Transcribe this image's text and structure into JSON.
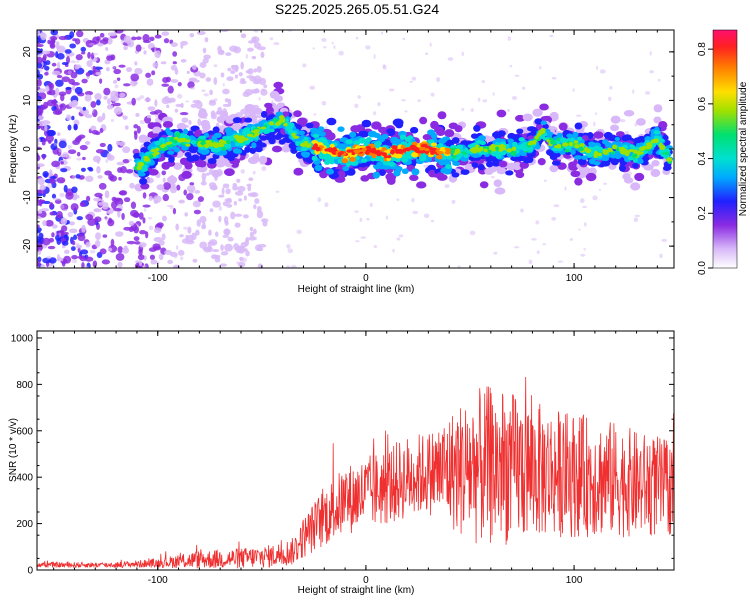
{
  "title": "S225.2025.265.05.51.G24",
  "colors": {
    "snr_line": "#f03030",
    "axis": "#000000",
    "colormap": [
      "#ffffff",
      "#d8b8f8",
      "#8a2be2",
      "#2020ff",
      "#00aaff",
      "#00e0d0",
      "#00e070",
      "#a0e000",
      "#ffe000",
      "#ff8000",
      "#ff2020",
      "#ff1070"
    ]
  },
  "chart_data": [
    {
      "type": "heatmap",
      "name": "spectrogram",
      "xlabel": "Height of straight line (km)",
      "ylabel": "Frequency (Hz)",
      "xlim": [
        -158,
        148
      ],
      "ylim": [
        -24.5,
        24.5
      ],
      "xticks": [
        -100,
        0,
        100
      ],
      "yticks": [
        -20,
        -10,
        0,
        10,
        20
      ],
      "grid": false,
      "colorbar": {
        "label": "Normalized spectral amplitude",
        "range": [
          0,
          0.87
        ],
        "ticks": [
          0.0,
          0.2,
          0.4,
          0.6,
          0.8
        ]
      },
      "ridge": {
        "x": [
          -110,
          -100,
          -90,
          -80,
          -70,
          -60,
          -50,
          -40,
          -35,
          -30,
          -20,
          -10,
          0,
          10,
          20,
          30,
          40,
          50,
          60,
          70,
          80,
          85,
          90,
          100,
          110,
          120,
          130,
          140,
          146
        ],
        "y": [
          -4,
          0,
          2,
          1,
          1,
          2,
          4,
          6,
          3,
          1,
          0,
          -1,
          0,
          -1,
          0,
          0,
          -1,
          0,
          0,
          0,
          1,
          4,
          1,
          1,
          -1,
          0,
          -1,
          2,
          -2
        ]
      }
    },
    {
      "type": "line",
      "name": "snr",
      "xlabel": "Height of straight line (km)",
      "ylabel": "SNR (10 * v/v)",
      "xlim": [
        -158,
        148
      ],
      "ylim": [
        0,
        1030
      ],
      "xticks": [
        -100,
        0,
        100
      ],
      "yticks": [
        0,
        200,
        400,
        600,
        800,
        1000
      ],
      "grid": false,
      "envelope": {
        "x": [
          -158,
          -120,
          -100,
          -80,
          -60,
          -45,
          -35,
          -30,
          -20,
          -10,
          0,
          10,
          20,
          30,
          40,
          50,
          60,
          70,
          80,
          90,
          100,
          110,
          120,
          130,
          140,
          148
        ],
        "mean": [
          22,
          22,
          30,
          45,
          50,
          60,
          80,
          140,
          230,
          300,
          330,
          360,
          400,
          420,
          430,
          440,
          450,
          440,
          430,
          420,
          410,
          400,
          390,
          370,
          360,
          350
        ],
        "amplitude": [
          12,
          12,
          20,
          40,
          45,
          50,
          60,
          90,
          130,
          150,
          160,
          170,
          180,
          180,
          250,
          330,
          350,
          330,
          300,
          280,
          270,
          260,
          250,
          230,
          220,
          200
        ]
      }
    }
  ]
}
